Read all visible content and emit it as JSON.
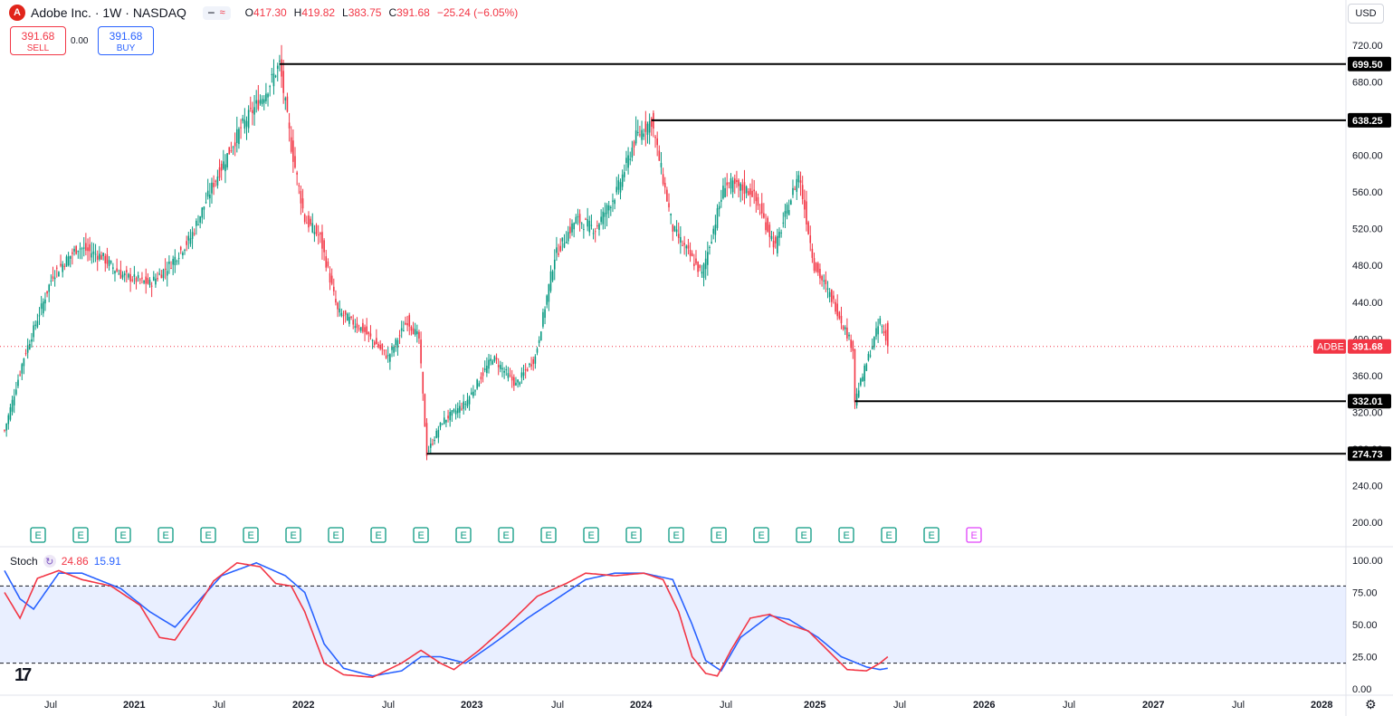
{
  "header": {
    "title": "Adobe Inc. · 1W · NASDAQ",
    "logo_letter": "A",
    "ohlc": [
      {
        "k": "O",
        "v": "417.30"
      },
      {
        "k": "H",
        "v": "419.82"
      },
      {
        "k": "L",
        "v": "383.75"
      },
      {
        "k": "C",
        "v": "391.68"
      },
      {
        "k": "",
        "v": "−25.24 (−6.05%)"
      }
    ]
  },
  "trade": {
    "sell_price": "391.68",
    "sell_label": "SELL",
    "buy_price": "391.68",
    "buy_label": "BUY",
    "spread": "0.00"
  },
  "currency": "USD",
  "price_axis": [
    "720.00",
    "680.00",
    "640.00",
    "600.00",
    "560.00",
    "520.00",
    "480.00",
    "440.00",
    "400.00",
    "360.00",
    "320.00",
    "280.00",
    "240.00",
    "200.00"
  ],
  "level_lines": [
    {
      "price": 699.5,
      "label": "699.50",
      "start_week": 142
    },
    {
      "price": 638.25,
      "label": "638.25",
      "start_week": 334
    },
    {
      "price": 332.01,
      "label": "332.01",
      "start_week": 439
    },
    {
      "price": 274.73,
      "label": "274.73",
      "start_week": 218
    }
  ],
  "last_price": {
    "symbol": "ADBE",
    "value": "391.68",
    "price": 391.68
  },
  "earnings_markers": {
    "label": "E",
    "count_past": 22,
    "count_future": 1
  },
  "stoch": {
    "name": "Stoch",
    "k_value": "24.86",
    "d_value": "15.91",
    "k_color": "#f23645",
    "d_color": "#2962ff",
    "axis": [
      "100.00",
      "75.00",
      "50.00",
      "25.00",
      "0.00"
    ],
    "bands": [
      80,
      20
    ]
  },
  "time_axis": [
    "Jul",
    "2021",
    "Jul",
    "2022",
    "Jul",
    "2023",
    "Jul",
    "2024",
    "Jul",
    "2025",
    "Jul",
    "2026",
    "Jul",
    "2027",
    "Jul",
    "2028"
  ],
  "colors": {
    "up": "#089981",
    "down": "#f23645",
    "accent": "#2962ff"
  },
  "chart_data": {
    "type": "candlestick",
    "title": "Adobe Inc. · 1W · NASDAQ",
    "ylim": [
      190,
      735
    ],
    "anchors_week_price": [
      [
        0,
        300
      ],
      [
        10,
        380
      ],
      [
        25,
        470
      ],
      [
        38,
        500
      ],
      [
        50,
        490
      ],
      [
        60,
        470
      ],
      [
        75,
        460
      ],
      [
        85,
        480
      ],
      [
        96,
        510
      ],
      [
        108,
        570
      ],
      [
        122,
        630
      ],
      [
        135,
        670
      ],
      [
        142,
        699.5
      ],
      [
        148,
        610
      ],
      [
        155,
        530
      ],
      [
        163,
        510
      ],
      [
        172,
        430
      ],
      [
        185,
        410
      ],
      [
        198,
        380
      ],
      [
        208,
        420
      ],
      [
        214,
        400
      ],
      [
        218,
        274.73
      ],
      [
        226,
        310
      ],
      [
        238,
        330
      ],
      [
        252,
        380
      ],
      [
        264,
        350
      ],
      [
        274,
        380
      ],
      [
        284,
        490
      ],
      [
        295,
        530
      ],
      [
        305,
        520
      ],
      [
        316,
        560
      ],
      [
        326,
        620
      ],
      [
        334,
        638.25
      ],
      [
        345,
        520
      ],
      [
        360,
        470
      ],
      [
        372,
        570
      ],
      [
        386,
        560
      ],
      [
        398,
        500
      ],
      [
        410,
        580
      ],
      [
        418,
        480
      ],
      [
        428,
        440
      ],
      [
        438,
        390
      ],
      [
        439,
        332.01
      ],
      [
        446,
        380
      ],
      [
        452,
        420
      ],
      [
        456,
        391.68
      ]
    ],
    "stoch_k": [
      [
        0,
        75
      ],
      [
        8,
        55
      ],
      [
        17,
        86
      ],
      [
        28,
        92
      ],
      [
        40,
        85
      ],
      [
        55,
        80
      ],
      [
        70,
        65
      ],
      [
        80,
        40
      ],
      [
        88,
        38
      ],
      [
        98,
        60
      ],
      [
        108,
        84
      ],
      [
        120,
        98
      ],
      [
        132,
        95
      ],
      [
        140,
        82
      ],
      [
        148,
        80
      ],
      [
        155,
        60
      ],
      [
        165,
        20
      ],
      [
        175,
        11
      ],
      [
        190,
        9
      ],
      [
        205,
        20
      ],
      [
        215,
        30
      ],
      [
        225,
        20
      ],
      [
        232,
        15
      ],
      [
        245,
        30
      ],
      [
        260,
        50
      ],
      [
        275,
        72
      ],
      [
        290,
        82
      ],
      [
        300,
        90
      ],
      [
        315,
        88
      ],
      [
        330,
        90
      ],
      [
        340,
        85
      ],
      [
        348,
        60
      ],
      [
        355,
        25
      ],
      [
        362,
        12
      ],
      [
        368,
        10
      ],
      [
        375,
        30
      ],
      [
        385,
        55
      ],
      [
        395,
        58
      ],
      [
        405,
        50
      ],
      [
        415,
        45
      ],
      [
        425,
        30
      ],
      [
        435,
        15
      ],
      [
        445,
        14
      ],
      [
        452,
        20
      ],
      [
        456,
        25
      ]
    ],
    "stoch_d": [
      [
        0,
        92
      ],
      [
        8,
        70
      ],
      [
        15,
        62
      ],
      [
        28,
        90
      ],
      [
        40,
        90
      ],
      [
        60,
        78
      ],
      [
        75,
        60
      ],
      [
        88,
        48
      ],
      [
        100,
        68
      ],
      [
        112,
        88
      ],
      [
        130,
        98
      ],
      [
        145,
        88
      ],
      [
        155,
        75
      ],
      [
        165,
        35
      ],
      [
        175,
        16
      ],
      [
        190,
        10
      ],
      [
        205,
        14
      ],
      [
        215,
        25
      ],
      [
        225,
        25
      ],
      [
        238,
        20
      ],
      [
        255,
        38
      ],
      [
        270,
        55
      ],
      [
        285,
        70
      ],
      [
        300,
        85
      ],
      [
        315,
        90
      ],
      [
        330,
        90
      ],
      [
        345,
        85
      ],
      [
        355,
        50
      ],
      [
        362,
        22
      ],
      [
        370,
        14
      ],
      [
        380,
        40
      ],
      [
        395,
        57
      ],
      [
        405,
        54
      ],
      [
        420,
        40
      ],
      [
        432,
        25
      ],
      [
        445,
        17
      ],
      [
        452,
        15
      ],
      [
        456,
        16
      ]
    ]
  }
}
